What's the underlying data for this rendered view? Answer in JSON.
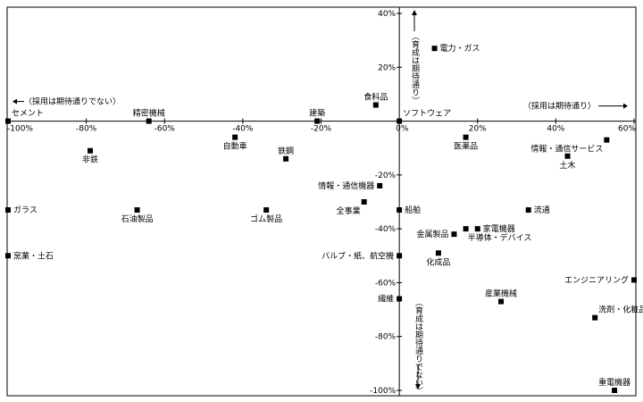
{
  "chart_data": {
    "type": "scatter",
    "title": "",
    "xlabel": "",
    "ylabel": "",
    "xlim": [
      -100,
      60
    ],
    "ylim": [
      -100,
      40
    ],
    "x_ticks": [
      -100,
      -80,
      -60,
      -40,
      -20,
      0,
      20,
      40,
      60
    ],
    "x_tick_labels": [
      "-100%",
      "-80%",
      "-60%",
      "-40%",
      "-20%",
      "0%",
      "20%",
      "40%",
      "60%"
    ],
    "y_ticks": [
      40,
      20,
      -20,
      -40,
      -60,
      -80,
      -100
    ],
    "y_tick_labels": [
      "40%",
      "20%",
      "-20%",
      "-40%",
      "-60%",
      "-80%",
      "-100%"
    ],
    "grid": false,
    "axis_notes": {
      "x_positive": "（採用は期待通り）",
      "x_negative": "（採用は期待通りでない）",
      "y_positive": "（育成は期待通り）",
      "y_negative": "（育成は期待通りでない）"
    },
    "points": [
      {
        "label": "電力・ガス",
        "x": 9,
        "y": 27,
        "anchor": "right"
      },
      {
        "label": "食料品",
        "x": -6,
        "y": 6,
        "anchor": "above"
      },
      {
        "label": "建築",
        "x": -21,
        "y": 0,
        "anchor": "above"
      },
      {
        "label": "精密機械",
        "x": -64,
        "y": 0,
        "anchor": "above"
      },
      {
        "label": "セメント",
        "x": -100,
        "y": 0,
        "anchor": "above-right"
      },
      {
        "label": "ソフトウェア",
        "x": 0,
        "y": 0,
        "anchor": "above-right"
      },
      {
        "label": "自動車",
        "x": -42,
        "y": -6,
        "anchor": "below"
      },
      {
        "label": "鉄鋼",
        "x": -29,
        "y": -14,
        "anchor": "above"
      },
      {
        "label": "非鉄",
        "x": -79,
        "y": -11,
        "anchor": "below"
      },
      {
        "label": "医薬品",
        "x": 17,
        "y": -6,
        "anchor": "below"
      },
      {
        "label": "情報・通信サービス",
        "x": 53,
        "y": -7,
        "anchor": "below-left"
      },
      {
        "label": "土木",
        "x": 43,
        "y": -13,
        "anchor": "below"
      },
      {
        "label": "情報・通信機器",
        "x": -5,
        "y": -24,
        "anchor": "left"
      },
      {
        "label": "全事業",
        "x": -9,
        "y": -30,
        "anchor": "below-left"
      },
      {
        "label": "ガラス",
        "x": -100,
        "y": -33,
        "anchor": "right"
      },
      {
        "label": "石油製品",
        "x": -67,
        "y": -33,
        "anchor": "below"
      },
      {
        "label": "ゴム製品",
        "x": -34,
        "y": -33,
        "anchor": "below"
      },
      {
        "label": "船舶",
        "x": 0,
        "y": -33,
        "anchor": "right"
      },
      {
        "label": "流通",
        "x": 33,
        "y": -33,
        "anchor": "right"
      },
      {
        "label": "家電機器",
        "x": 20,
        "y": -40,
        "anchor": "right"
      },
      {
        "label": "金属製品",
        "x": 14,
        "y": -42,
        "anchor": "left"
      },
      {
        "label": "半導体・デバイス",
        "x": 17,
        "y": -40,
        "anchor": "below-right"
      },
      {
        "label": "化成品",
        "x": 10,
        "y": -49,
        "anchor": "below"
      },
      {
        "label": "窯業・土石",
        "x": -100,
        "y": -50,
        "anchor": "right"
      },
      {
        "label": "バルブ・紙、航空機",
        "x": 0,
        "y": -50,
        "anchor": "left"
      },
      {
        "label": "エンジニアリング",
        "x": 60,
        "y": -59,
        "anchor": "left"
      },
      {
        "label": "繊維",
        "x": 0,
        "y": -66,
        "anchor": "left"
      },
      {
        "label": "産業機械",
        "x": 26,
        "y": -67,
        "anchor": "above"
      },
      {
        "label": "洗剤・化粧品等",
        "x": 50,
        "y": -73,
        "anchor": "above-right"
      },
      {
        "label": "重電機器",
        "x": 55,
        "y": -100,
        "anchor": "above"
      }
    ]
  }
}
